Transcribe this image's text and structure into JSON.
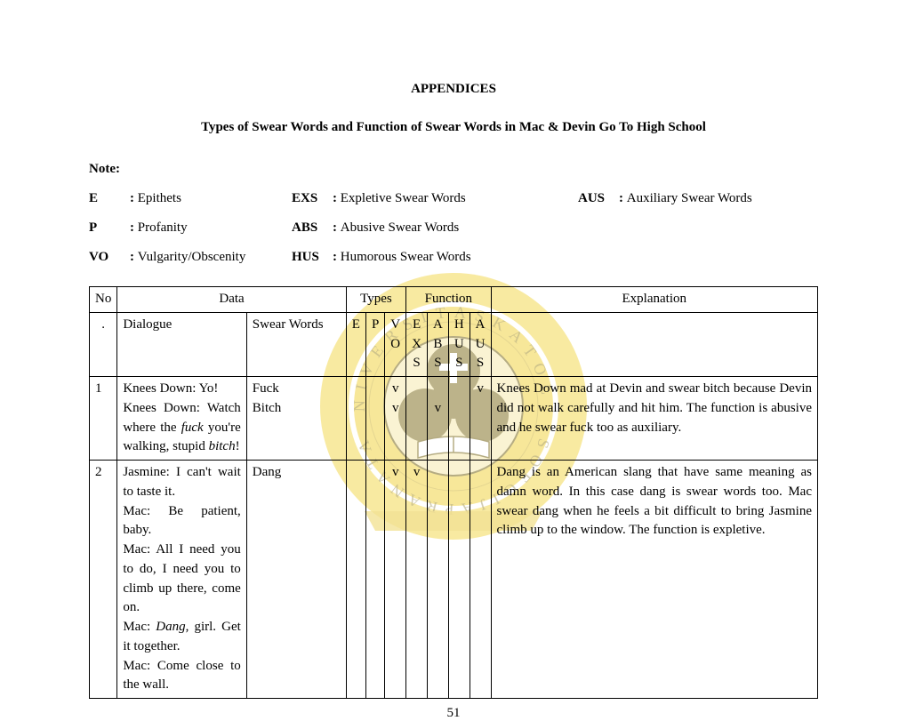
{
  "title1": "APPENDICES",
  "title2": "Types of Swear Words and Function of Swear Words in Mac & Devin Go To High School",
  "note_label": "Note:",
  "legend": {
    "row1": {
      "c1_code": "E",
      "c1_desc": "Epithets",
      "c2_code": "EXS",
      "c2_desc": "Expletive Swear Words",
      "c3_code": "AUS",
      "c3_desc": "Auxiliary Swear Words"
    },
    "row2": {
      "c1_code": "P",
      "c1_desc": "Profanity",
      "c2_code": "ABS",
      "c2_desc": "Abusive Swear Words"
    },
    "row3": {
      "c1_code": "VO",
      "c1_desc": "Vulgarity/Obscenity",
      "c2_code": "HUS",
      "c2_desc": "Humorous Swear Words"
    }
  },
  "table": {
    "headers": {
      "no": "No",
      "data": "Data",
      "types": "Types",
      "function": "Function",
      "explanation": "Explanation",
      "no_sub": ".",
      "dialogue": "Dialogue",
      "swear_words": "Swear Words",
      "E": "E",
      "P": "P",
      "VO": "V\nO",
      "EXS": "E\nX\nS",
      "ABS": "A\nB\nS",
      "HUS": "H\nU\nS",
      "AUS": "A\nU\nS"
    },
    "rows": [
      {
        "no": "1",
        "dialogue_html": "Knees Down: Yo!<br>Knees Down: Watch where the <em class='ital'>fuck</em> you're walking, stupid <em class='ital'>bitch</em>!",
        "swear_html": "Fuck<br>Bitch",
        "types": {
          "E": "",
          "P": "",
          "VO": "v<br>v"
        },
        "func": {
          "EXS": "",
          "ABS": "<br>v",
          "HUS": "",
          "AUS": "v"
        },
        "explanation_html": "Knees Down mad at Devin and swear bitch because Devin did not walk carefully and hit him. The function is abusive and he swear fuck too as auxiliary."
      },
      {
        "no": "2",
        "dialogue_html": "Jasmine: I can't wait to taste it.<br>Mac: Be patient, baby.<br>Mac: All I need you to do, I need you to climb up there, come on.<br>Mac: <em class='ital'>Dang</em>, girl. Get it together.<br>Mac: Come close to the wall.",
        "swear_html": "Dang",
        "types": {
          "E": "",
          "P": "",
          "VO": "v"
        },
        "func": {
          "EXS": "v",
          "ABS": "",
          "HUS": "",
          "AUS": ""
        },
        "explanation_html": "Dang is an American slang that have same meaning as damn word. In this case dang is swear words too. Mac swear dang when he feels a bit difficult to bring Jasmine climb up to the window. The function is expletive."
      }
    ]
  },
  "page_number": "51",
  "watermark": {
    "outer_color": "#f4d955",
    "inner_yellow": "#f2d546",
    "banner_color": "#e8c93e",
    "seal_bg": "#f7eab0",
    "text_color": "#7a6a1e",
    "white": "#ffffff"
  }
}
